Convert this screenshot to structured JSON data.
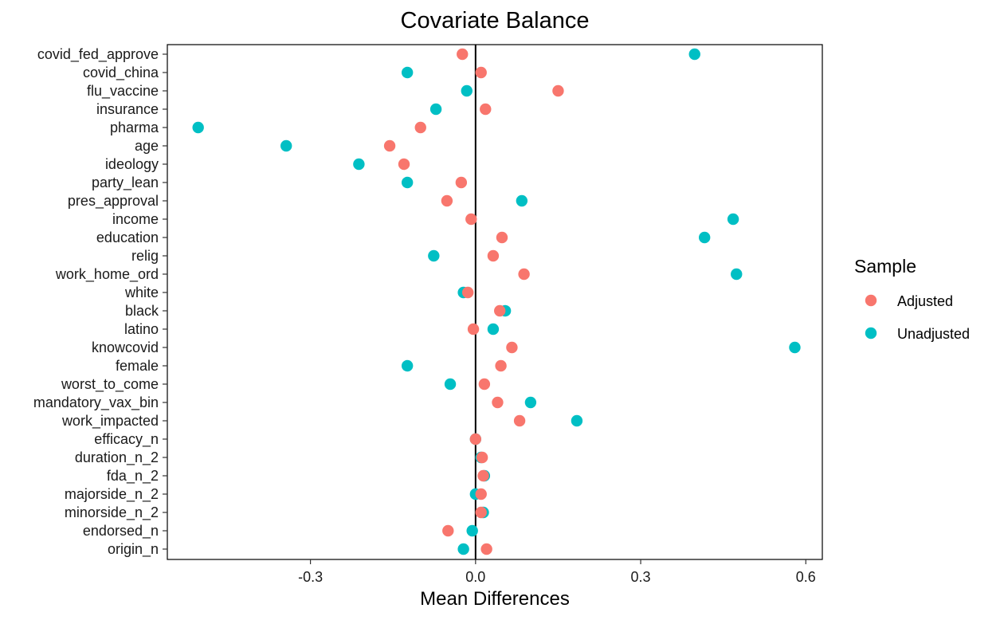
{
  "chart_data": {
    "type": "scatter",
    "title": "Covariate Balance",
    "xlabel": "Mean Differences",
    "ylabel": "",
    "xlim": [
      -0.56,
      0.63
    ],
    "xticks": [
      -0.3,
      0.0,
      0.3,
      0.6
    ],
    "xtick_labels": [
      "-0.3",
      "0.0",
      "0.3",
      "0.6"
    ],
    "reference_line_x": 0,
    "grid": false,
    "legend_position": "right",
    "legend_title": "Sample",
    "categories": [
      "covid_fed_approve",
      "covid_china",
      "flu_vaccine",
      "insurance",
      "pharma",
      "age",
      "ideology",
      "party_lean",
      "pres_approval",
      "income",
      "education",
      "relig",
      "work_home_ord",
      "white",
      "black",
      "latino",
      "knowcovid",
      "female",
      "worst_to_come",
      "mandatory_vax_bin",
      "work_impacted",
      "efficacy_n",
      "duration_n_2",
      "fda_n_2",
      "majorside_n_2",
      "minorside_n_2",
      "endorsed_n",
      "origin_n"
    ],
    "series": [
      {
        "name": "Unadjusted",
        "color": "#00BFC4",
        "values": [
          0.398,
          -0.124,
          -0.016,
          -0.072,
          -0.504,
          -0.344,
          -0.212,
          -0.124,
          0.084,
          0.468,
          0.416,
          -0.076,
          0.474,
          -0.022,
          0.054,
          0.032,
          0.58,
          -0.124,
          -0.046,
          0.1,
          0.184,
          0.0,
          0.01,
          0.016,
          0.0,
          0.014,
          -0.006,
          -0.022
        ]
      },
      {
        "name": "Adjusted",
        "color": "#F8766D",
        "values": [
          -0.024,
          0.01,
          0.15,
          0.018,
          -0.1,
          -0.156,
          -0.13,
          -0.026,
          -0.052,
          -0.008,
          0.048,
          0.032,
          0.088,
          -0.014,
          0.044,
          -0.004,
          0.066,
          0.046,
          0.016,
          0.04,
          0.08,
          0.0,
          0.012,
          0.014,
          0.01,
          0.01,
          -0.05,
          0.02
        ]
      }
    ]
  }
}
